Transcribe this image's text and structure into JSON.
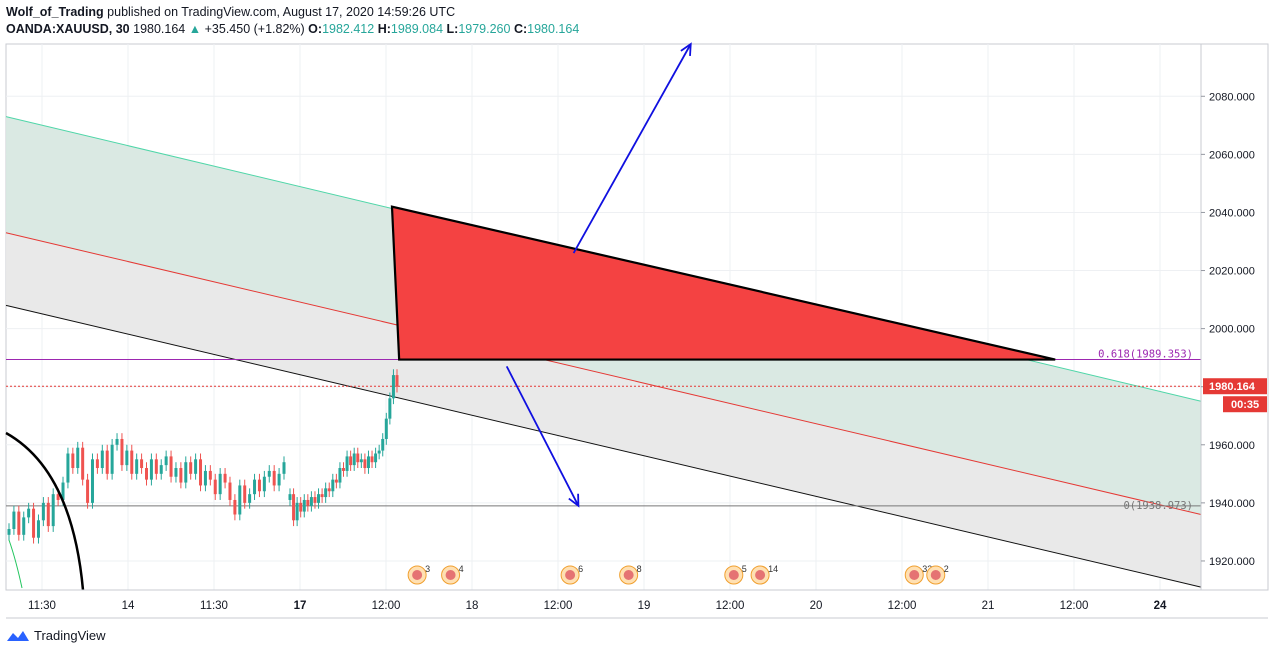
{
  "header": {
    "author": "Wolf_of_Trading",
    "published_text": "published on TradingView.com, August 17, 2020 14:59:26 UTC",
    "symbol": "OANDA:XAUUSD, 30",
    "last": "1980.164",
    "change": "+35.450 (+1.82%)",
    "o_label": "O:",
    "o": "1982.412",
    "h_label": "H:",
    "h": "1989.084",
    "l_label": "L:",
    "l": "1979.260",
    "c_label": "C:",
    "c": "1980.164"
  },
  "footer": {
    "brand": "TradingView"
  },
  "colors": {
    "up": "#26a69a",
    "down": "#ef5350",
    "triangle_fill": "#f44242",
    "arrow": "#1010e0",
    "fib_line": "#9c27b0",
    "price_tag": "#e53935",
    "channel_upper_fill": "#d8e8e1",
    "channel_lower_fill": "#e8e8e8"
  },
  "chart_data": {
    "type": "candlestick",
    "y_ticks": [
      "2080.000",
      "2060.000",
      "2040.000",
      "2020.000",
      "2000.000",
      "1980.000",
      "1960.000",
      "1940.000",
      "1920.000"
    ],
    "y_tick_values": [
      2080,
      2060,
      2040,
      2020,
      2000,
      1980,
      1960,
      1940,
      1920
    ],
    "ylim": [
      1910,
      2098
    ],
    "x_ticks": [
      "11:30",
      "14",
      "11:30",
      "17",
      "12:00",
      "18",
      "12:00",
      "19",
      "12:00",
      "20",
      "12:00",
      "21",
      "12:00",
      "24"
    ],
    "x_tick_bold": [
      "17",
      "24"
    ],
    "current_price": "1980.164",
    "countdown": "00:35",
    "fib_upper": {
      "label": "0.618(1989.353)",
      "value": 1989.353
    },
    "fib_lower": {
      "label": "0(1938.973)",
      "value": 1938.973
    },
    "channel": {
      "upper": [
        2073,
        1975
      ],
      "middle": [
        2033,
        1936
      ],
      "lower": [
        2008,
        1911
      ]
    },
    "triangle": [
      {
        "t": 0.323,
        "y": 2042
      },
      {
        "t": 0.329,
        "y": 1989.353
      },
      {
        "t": 0.878,
        "y": 1989.353
      }
    ],
    "arrows": [
      {
        "from": {
          "t": 0.475,
          "y": 2026
        },
        "to": {
          "t": 0.573,
          "y": 2098
        }
      },
      {
        "from": {
          "t": 0.419,
          "y": 1987
        },
        "to": {
          "t": 0.479,
          "y": 1939
        }
      }
    ],
    "price_segments": [
      [
        1931,
        1937,
        1929,
        1935,
        1938,
        1928,
        1934,
        1940,
        1932,
        1943,
        1941,
        1947,
        1957,
        1952,
        1959,
        1948,
        1940,
        1955,
        1952,
        1958,
        1950,
        1960,
        1962,
        1953,
        1958,
        1950,
        1955,
        1952,
        1948,
        1955,
        1950,
        1953,
        1956,
        1949,
        1952,
        1947,
        1954,
        1950,
        1955,
        1946,
        1951,
        1948,
        1943,
        1950,
        1947,
        1941,
        1936,
        1946,
        1940,
        1943,
        1948,
        1944,
        1949,
        1951,
        1946,
        1950,
        1954
      ],
      [
        1943,
        1934,
        1940,
        1937,
        1941,
        1939,
        1942,
        1940,
        1943,
        1942,
        1945,
        1944,
        1948,
        1947,
        1952,
        1951,
        1956,
        1953,
        1957,
        1954,
        1955,
        1952,
        1956,
        1954,
        1957,
        1958,
        1962,
        1969,
        1976,
        1984,
        1980
      ]
    ],
    "event_icons": [
      {
        "label": "3",
        "x_frac": 0.334
      },
      {
        "label": "4",
        "x_frac": 0.362
      },
      {
        "label": "6",
        "x_frac": 0.462
      },
      {
        "label": "8",
        "x_frac": 0.511
      },
      {
        "label": "5",
        "x_frac": 0.599
      },
      {
        "label": "14",
        "x_frac": 0.621
      },
      {
        "label": "33",
        "x_frac": 0.75
      },
      {
        "label": "2",
        "x_frac": 0.768
      }
    ]
  }
}
